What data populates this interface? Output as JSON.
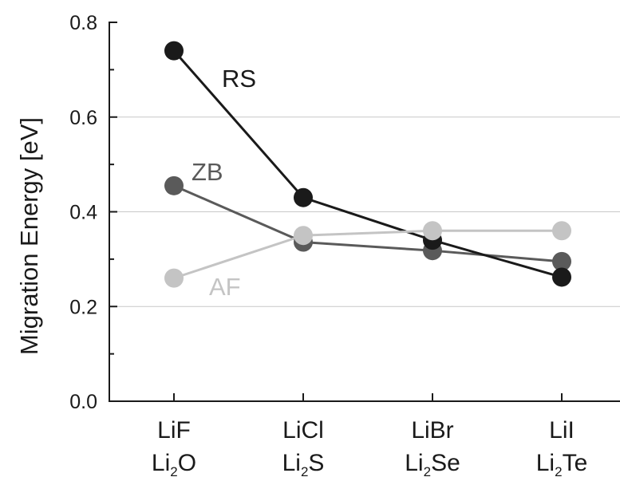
{
  "chart_data": {
    "type": "line",
    "categories": [
      [
        "LiF",
        "Li",
        "2",
        "O"
      ],
      [
        "LiCl",
        "Li",
        "2",
        "S"
      ],
      [
        "LiBr",
        "Li",
        "2",
        "Se"
      ],
      [
        "LiI",
        "Li",
        "2",
        "Te"
      ]
    ],
    "ylabel": "Migration Energy [eV]",
    "ylim": [
      0.0,
      0.8
    ],
    "yticks": [
      "0.0",
      "0.2",
      "0.4",
      "0.6",
      "0.8"
    ],
    "ytick_values": [
      0.0,
      0.2,
      0.4,
      0.6,
      0.8
    ],
    "grid": true,
    "series": [
      {
        "name": "RS",
        "color": "#1a1a1a",
        "values": [
          0.74,
          0.43,
          0.34,
          0.262
        ]
      },
      {
        "name": "ZB",
        "color": "#5a5a5a",
        "values": [
          0.455,
          0.336,
          0.318,
          0.295
        ]
      },
      {
        "name": "AF",
        "color": "#c4c4c4",
        "values": [
          0.26,
          0.35,
          0.36,
          0.36
        ]
      }
    ]
  }
}
